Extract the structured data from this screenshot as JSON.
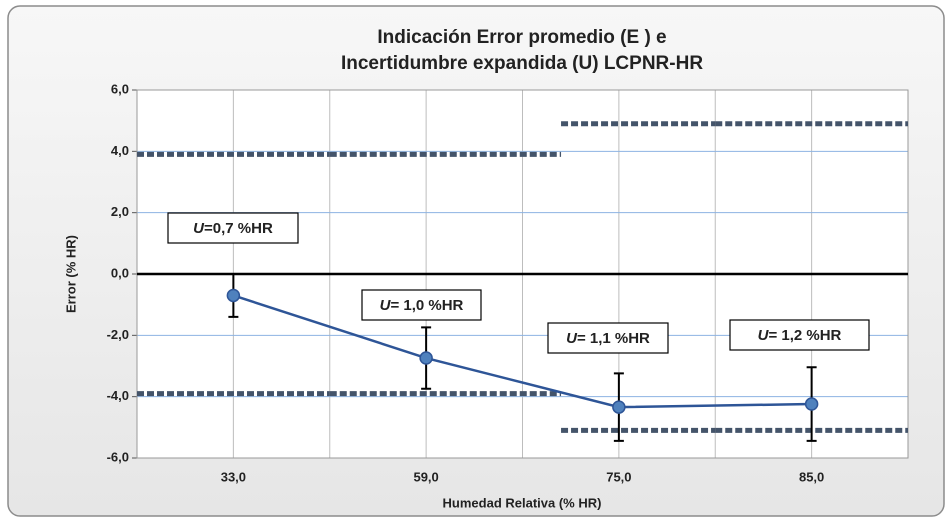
{
  "chart_data": {
    "type": "line",
    "title_lines": [
      "Indicación  Error promedio (E ) e",
      "Incertidumbre expandida (U) LCPNR-HR"
    ],
    "x_label": "Humedad Relativa (% HR)",
    "y_label": "Error (% HR)",
    "categories": [
      "33,0",
      "59,0",
      "75,0",
      "85,0"
    ],
    "series": [
      {
        "color": "#2e5597",
        "values": [
          -0.7,
          -2.74,
          -4.34,
          -4.24
        ],
        "errors": [
          0.7,
          1.0,
          1.1,
          1.2
        ]
      }
    ],
    "limits": [
      {
        "color": "#44546a",
        "values": [
          3.9,
          3.9,
          4.9,
          4.9
        ]
      },
      {
        "color": "#44546a",
        "values": [
          -3.9,
          -3.9,
          -5.1,
          -5.1
        ]
      }
    ],
    "annotations": [
      {
        "symbol": "U",
        "text": "=0,7 %HR"
      },
      {
        "symbol": "U",
        "text": "= 1,0 %HR"
      },
      {
        "symbol": "U",
        "text": "= 1,1 %HR"
      },
      {
        "symbol": "U",
        "text": "= 1,2 %HR"
      }
    ],
    "ylim": [
      -6,
      6
    ],
    "yticks": [
      {
        "value": -6,
        "label": "-6,0"
      },
      {
        "value": -4,
        "label": "-4,0"
      },
      {
        "value": -2,
        "label": "-2,0"
      },
      {
        "value": 0,
        "label": "0,0"
      },
      {
        "value": 2,
        "label": "2,0"
      },
      {
        "value": 4,
        "label": "4,0"
      },
      {
        "value": 6,
        "label": "6,0"
      }
    ],
    "grid": true
  }
}
